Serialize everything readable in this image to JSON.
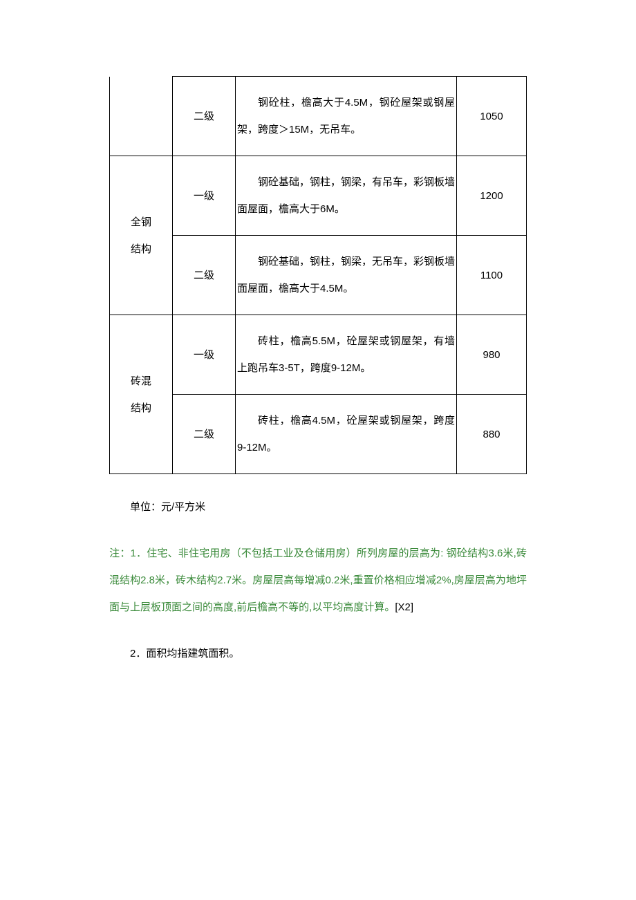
{
  "table": {
    "rows": [
      {
        "structure": "",
        "level": "二级",
        "desc": "钢砼柱，檐高大于4.5M，钢砼屋架或钢屋架，跨度＞15M，无吊车。",
        "price": "1050"
      },
      {
        "structure": "全钢结构",
        "level": "一级",
        "desc": "钢砼基础，钢柱，钢梁，有吊车，彩钢板墙面屋面，檐高大于6M。",
        "price": "1200"
      },
      {
        "structure": "",
        "level": "二级",
        "desc": "钢砼基础，钢柱，钢梁，无吊车，彩钢板墙面屋面，檐高大于4.5M。",
        "price": "1100"
      },
      {
        "structure": "砖混结构",
        "level": "一级",
        "desc": "砖柱，檐高5.5M，砼屋架或钢屋架，有墙上跑吊车3-5T，跨度9-12M。",
        "price": "980"
      },
      {
        "structure": "",
        "level": "二级",
        "desc": "砖柱，檐高4.5M，砼屋架或钢屋架，跨度9-12M。",
        "price": "880"
      }
    ],
    "struct_labels": {
      "row0_line1": "",
      "row0_line2": "",
      "row1_line1": "全钢",
      "row1_line2": "结构",
      "row3_line1": "砖混",
      "row3_line2": "结构"
    }
  },
  "unit_text": "单位：元/平方米",
  "note1": "注：1．住宅、非住宅用房（不包括工业及仓储用房）所列房屋的层高为: 钢砼结构3.6米,砖混结构2.8米，砖木结构2.7米。房屋层高每增减0.2米,重置价格相应增减2%,房屋层高为地坪面与上层板顶面之间的高度,前后檐高不等的,以平均高度计算",
  "note1_ref": "[X2]",
  "note1_period": "。",
  "note2": "2．面积均指建筑面积。"
}
